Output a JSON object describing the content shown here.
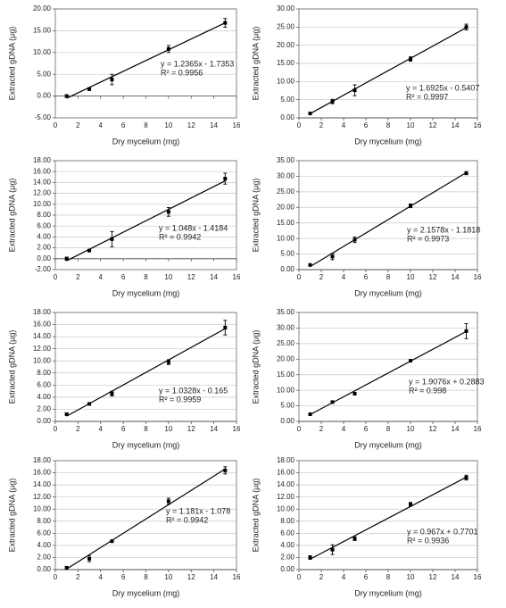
{
  "chart_data": [
    {
      "type": "scatter",
      "x": [
        1,
        3,
        5,
        10,
        15
      ],
      "values": [
        0,
        1.6,
        3.8,
        10.8,
        16.8
      ],
      "errors": [
        0.3,
        0.3,
        1.2,
        0.8,
        1.0
      ],
      "color": "#000000",
      "trendline": {
        "slope": 1.2365,
        "intercept": -1.7353
      },
      "equation": "y = 1.2365x - 1.7353",
      "r2": "R² = 0.9956",
      "xlabel": "Dry mycelium (mg)",
      "ylabel": "Extracted gDNA (µg)",
      "xlim": [
        0,
        16
      ],
      "xticks": [
        0,
        2,
        4,
        6,
        8,
        10,
        12,
        14,
        16
      ],
      "ylim": [
        -5,
        20
      ],
      "yticks": [
        {
          "value": -5,
          "label": "-5.00"
        },
        {
          "value": 0,
          "label": "0.00"
        },
        {
          "value": 5,
          "label": "5.00"
        },
        {
          "value": 10,
          "label": "10.00"
        },
        {
          "value": 15,
          "label": "15.00"
        },
        {
          "value": 20,
          "label": "20.00"
        }
      ],
      "grid": true
    },
    {
      "type": "scatter",
      "x": [
        1,
        3,
        5,
        10,
        15
      ],
      "values": [
        1.2,
        4.5,
        7.6,
        16.2,
        25
      ],
      "errors": [
        0.3,
        0.6,
        1.5,
        0.6,
        0.8
      ],
      "color": "#000000",
      "trendline": {
        "slope": 1.6925,
        "intercept": -0.5407
      },
      "equation": "y = 1.6925x - 0.5407",
      "r2": "R² = 0.9997",
      "xlabel": "Dry mycelium (mg)",
      "ylabel": "Extracted gDNA (µg)",
      "xlim": [
        0,
        16
      ],
      "xticks": [
        0,
        2,
        4,
        6,
        8,
        10,
        12,
        14,
        16
      ],
      "ylim": [
        0,
        30
      ],
      "yticks": [
        {
          "value": 0,
          "label": "0.00"
        },
        {
          "value": 5,
          "label": "5.00"
        },
        {
          "value": 10,
          "label": "10.00"
        },
        {
          "value": 15,
          "label": "15.00"
        },
        {
          "value": 20,
          "label": "20.00"
        },
        {
          "value": 25,
          "label": "25.00"
        },
        {
          "value": 30,
          "label": "30.00"
        }
      ],
      "grid": true
    },
    {
      "type": "scatter",
      "x": [
        1,
        3,
        5,
        10,
        15
      ],
      "values": [
        0,
        1.5,
        3.6,
        8.6,
        14.7
      ],
      "errors": [
        0.3,
        0.2,
        1.4,
        0.8,
        1.0
      ],
      "color": "#000000",
      "trendline": {
        "slope": 1.048,
        "intercept": -1.4184
      },
      "equation": "y = 1.048x - 1.4184",
      "r2": "R² = 0.9942",
      "xlabel": "Dry mycelium (mg)",
      "ylabel": "Extracted gDNA (µg)",
      "xlim": [
        0,
        16
      ],
      "xticks": [
        0,
        2,
        4,
        6,
        8,
        10,
        12,
        14,
        16
      ],
      "ylim": [
        -2,
        18
      ],
      "yticks": [
        {
          "value": -2,
          "label": "-2.00"
        },
        {
          "value": 0,
          "label": "0.00"
        },
        {
          "value": 2,
          "label": "2.00"
        },
        {
          "value": 4,
          "label": "4.00"
        },
        {
          "value": 6,
          "label": "6.00"
        },
        {
          "value": 8,
          "label": "8.00"
        },
        {
          "value": 10,
          "label": "10.00"
        },
        {
          "value": 12,
          "label": "12.00"
        },
        {
          "value": 14,
          "label": "14.00"
        },
        {
          "value": 16,
          "label": "16.00"
        },
        {
          "value": 18,
          "label": "18.00"
        }
      ],
      "grid": true
    },
    {
      "type": "scatter",
      "x": [
        1,
        3,
        5,
        10,
        15
      ],
      "values": [
        1.5,
        4.2,
        9.6,
        20.5,
        31
      ],
      "errors": [
        0.3,
        1.0,
        0.9,
        0.6,
        0.5
      ],
      "color": "#000000",
      "trendline": {
        "slope": 2.1578,
        "intercept": -1.1818
      },
      "equation": "y = 2.1578x - 1.1818",
      "r2": "R² = 0.9973",
      "xlabel": "Dry mycelium (mg)",
      "ylabel": "Extracted gDNA (µg)",
      "xlim": [
        0,
        16
      ],
      "xticks": [
        0,
        2,
        4,
        6,
        8,
        10,
        12,
        14,
        16
      ],
      "ylim": [
        0,
        35
      ],
      "yticks": [
        {
          "value": 0,
          "label": "0.00"
        },
        {
          "value": 5,
          "label": "5.00"
        },
        {
          "value": 10,
          "label": "10.00"
        },
        {
          "value": 15,
          "label": "15.00"
        },
        {
          "value": 20,
          "label": "20.00"
        },
        {
          "value": 25,
          "label": "25.00"
        },
        {
          "value": 30,
          "label": "30.00"
        },
        {
          "value": 35,
          "label": "35.00"
        }
      ],
      "grid": true
    },
    {
      "type": "scatter",
      "x": [
        1,
        3,
        5,
        10,
        15
      ],
      "values": [
        1.2,
        2.9,
        4.6,
        9.8,
        15.5
      ],
      "errors": [
        0.2,
        0.2,
        0.4,
        0.4,
        1.2
      ],
      "color": "#000000",
      "trendline": {
        "slope": 1.0328,
        "intercept": -0.165
      },
      "equation": "y = 1.0328x - 0.165",
      "r2": "R² = 0.9959",
      "xlabel": "Dry mycelium (mg)",
      "ylabel": "Extracted gDNA (µg)",
      "xlim": [
        0,
        16
      ],
      "xticks": [
        0,
        2,
        4,
        6,
        8,
        10,
        12,
        14,
        16
      ],
      "ylim": [
        0,
        18
      ],
      "yticks": [
        {
          "value": 0,
          "label": "0.00"
        },
        {
          "value": 2,
          "label": "2.00"
        },
        {
          "value": 4,
          "label": "4.00"
        },
        {
          "value": 6,
          "label": "6.00"
        },
        {
          "value": 8,
          "label": "8.00"
        },
        {
          "value": 10,
          "label": "10.00"
        },
        {
          "value": 12,
          "label": "12.00"
        },
        {
          "value": 14,
          "label": "14.00"
        },
        {
          "value": 16,
          "label": "16.00"
        },
        {
          "value": 18,
          "label": "18.00"
        }
      ],
      "grid": true
    },
    {
      "type": "scatter",
      "x": [
        1,
        3,
        5,
        10,
        15
      ],
      "values": [
        2.3,
        6.2,
        8.9,
        19.5,
        29
      ],
      "errors": [
        0.3,
        0.3,
        0.4,
        0.3,
        2.4
      ],
      "color": "#000000",
      "trendline": {
        "slope": 1.9076,
        "intercept": 0.2883
      },
      "equation": "y = 1.9076x + 0.2883",
      "r2": "R² = 0.998",
      "xlabel": "Dry mycelium (mg)",
      "ylabel": "Extracted gDNA (µg)",
      "xlim": [
        0,
        16
      ],
      "xticks": [
        0,
        2,
        4,
        6,
        8,
        10,
        12,
        14,
        16
      ],
      "ylim": [
        0,
        35
      ],
      "yticks": [
        {
          "value": 0,
          "label": "0.00"
        },
        {
          "value": 5,
          "label": "5.00"
        },
        {
          "value": 10,
          "label": "10.00"
        },
        {
          "value": 15,
          "label": "15.00"
        },
        {
          "value": 20,
          "label": "20.00"
        },
        {
          "value": 25,
          "label": "25.00"
        },
        {
          "value": 30,
          "label": "30.00"
        },
        {
          "value": 35,
          "label": "35.00"
        }
      ],
      "grid": true
    },
    {
      "type": "scatter",
      "x": [
        1,
        3,
        5,
        10,
        15
      ],
      "values": [
        0.3,
        1.8,
        4.7,
        11.3,
        16.4
      ],
      "errors": [
        0.2,
        0.5,
        0.2,
        0.5,
        0.6
      ],
      "color": "#000000",
      "trendline": {
        "slope": 1.181,
        "intercept": -1.078
      },
      "equation": "y = 1.181x - 1.078",
      "r2": "R² = 0.9942",
      "xlabel": "Dry mycelium (mg)",
      "ylabel": "Extracted gDNA (µg)",
      "xlim": [
        0,
        16
      ],
      "xticks": [
        0,
        2,
        4,
        6,
        8,
        10,
        12,
        14,
        16
      ],
      "ylim": [
        0,
        18
      ],
      "yticks": [
        {
          "value": 0,
          "label": "0.00"
        },
        {
          "value": 2,
          "label": "2.00"
        },
        {
          "value": 4,
          "label": "4.00"
        },
        {
          "value": 6,
          "label": "6.00"
        },
        {
          "value": 8,
          "label": "8.00"
        },
        {
          "value": 10,
          "label": "10.00"
        },
        {
          "value": 12,
          "label": "12.00"
        },
        {
          "value": 14,
          "label": "14.00"
        },
        {
          "value": 16,
          "label": "16.00"
        },
        {
          "value": 18,
          "label": "18.00"
        }
      ],
      "grid": true
    },
    {
      "type": "scatter",
      "x": [
        1,
        3,
        5,
        10,
        15
      ],
      "values": [
        2.0,
        3.3,
        5.1,
        10.8,
        15.2
      ],
      "errors": [
        0.3,
        0.8,
        0.3,
        0.3,
        0.4
      ],
      "color": "#000000",
      "trendline": {
        "slope": 0.967,
        "intercept": 0.7701
      },
      "equation": "y = 0.967x + 0.7701",
      "r2": "R² = 0.9936",
      "xlabel": "Dry mycelium (mg)",
      "ylabel": "Extracted gDNA (µg)",
      "xlim": [
        0,
        16
      ],
      "xticks": [
        0,
        2,
        4,
        6,
        8,
        10,
        12,
        14,
        16
      ],
      "ylim": [
        0,
        18
      ],
      "yticks": [
        {
          "value": 0,
          "label": "0.00"
        },
        {
          "value": 2,
          "label": "2.00"
        },
        {
          "value": 4,
          "label": "4.00"
        },
        {
          "value": 6,
          "label": "6.00"
        },
        {
          "value": 8,
          "label": "8.00"
        },
        {
          "value": 10,
          "label": "10.00"
        },
        {
          "value": 12,
          "label": "12.00"
        },
        {
          "value": 14,
          "label": "14.00"
        },
        {
          "value": 16,
          "label": "16.00"
        },
        {
          "value": 18,
          "label": "18.00"
        }
      ],
      "grid": true
    }
  ]
}
